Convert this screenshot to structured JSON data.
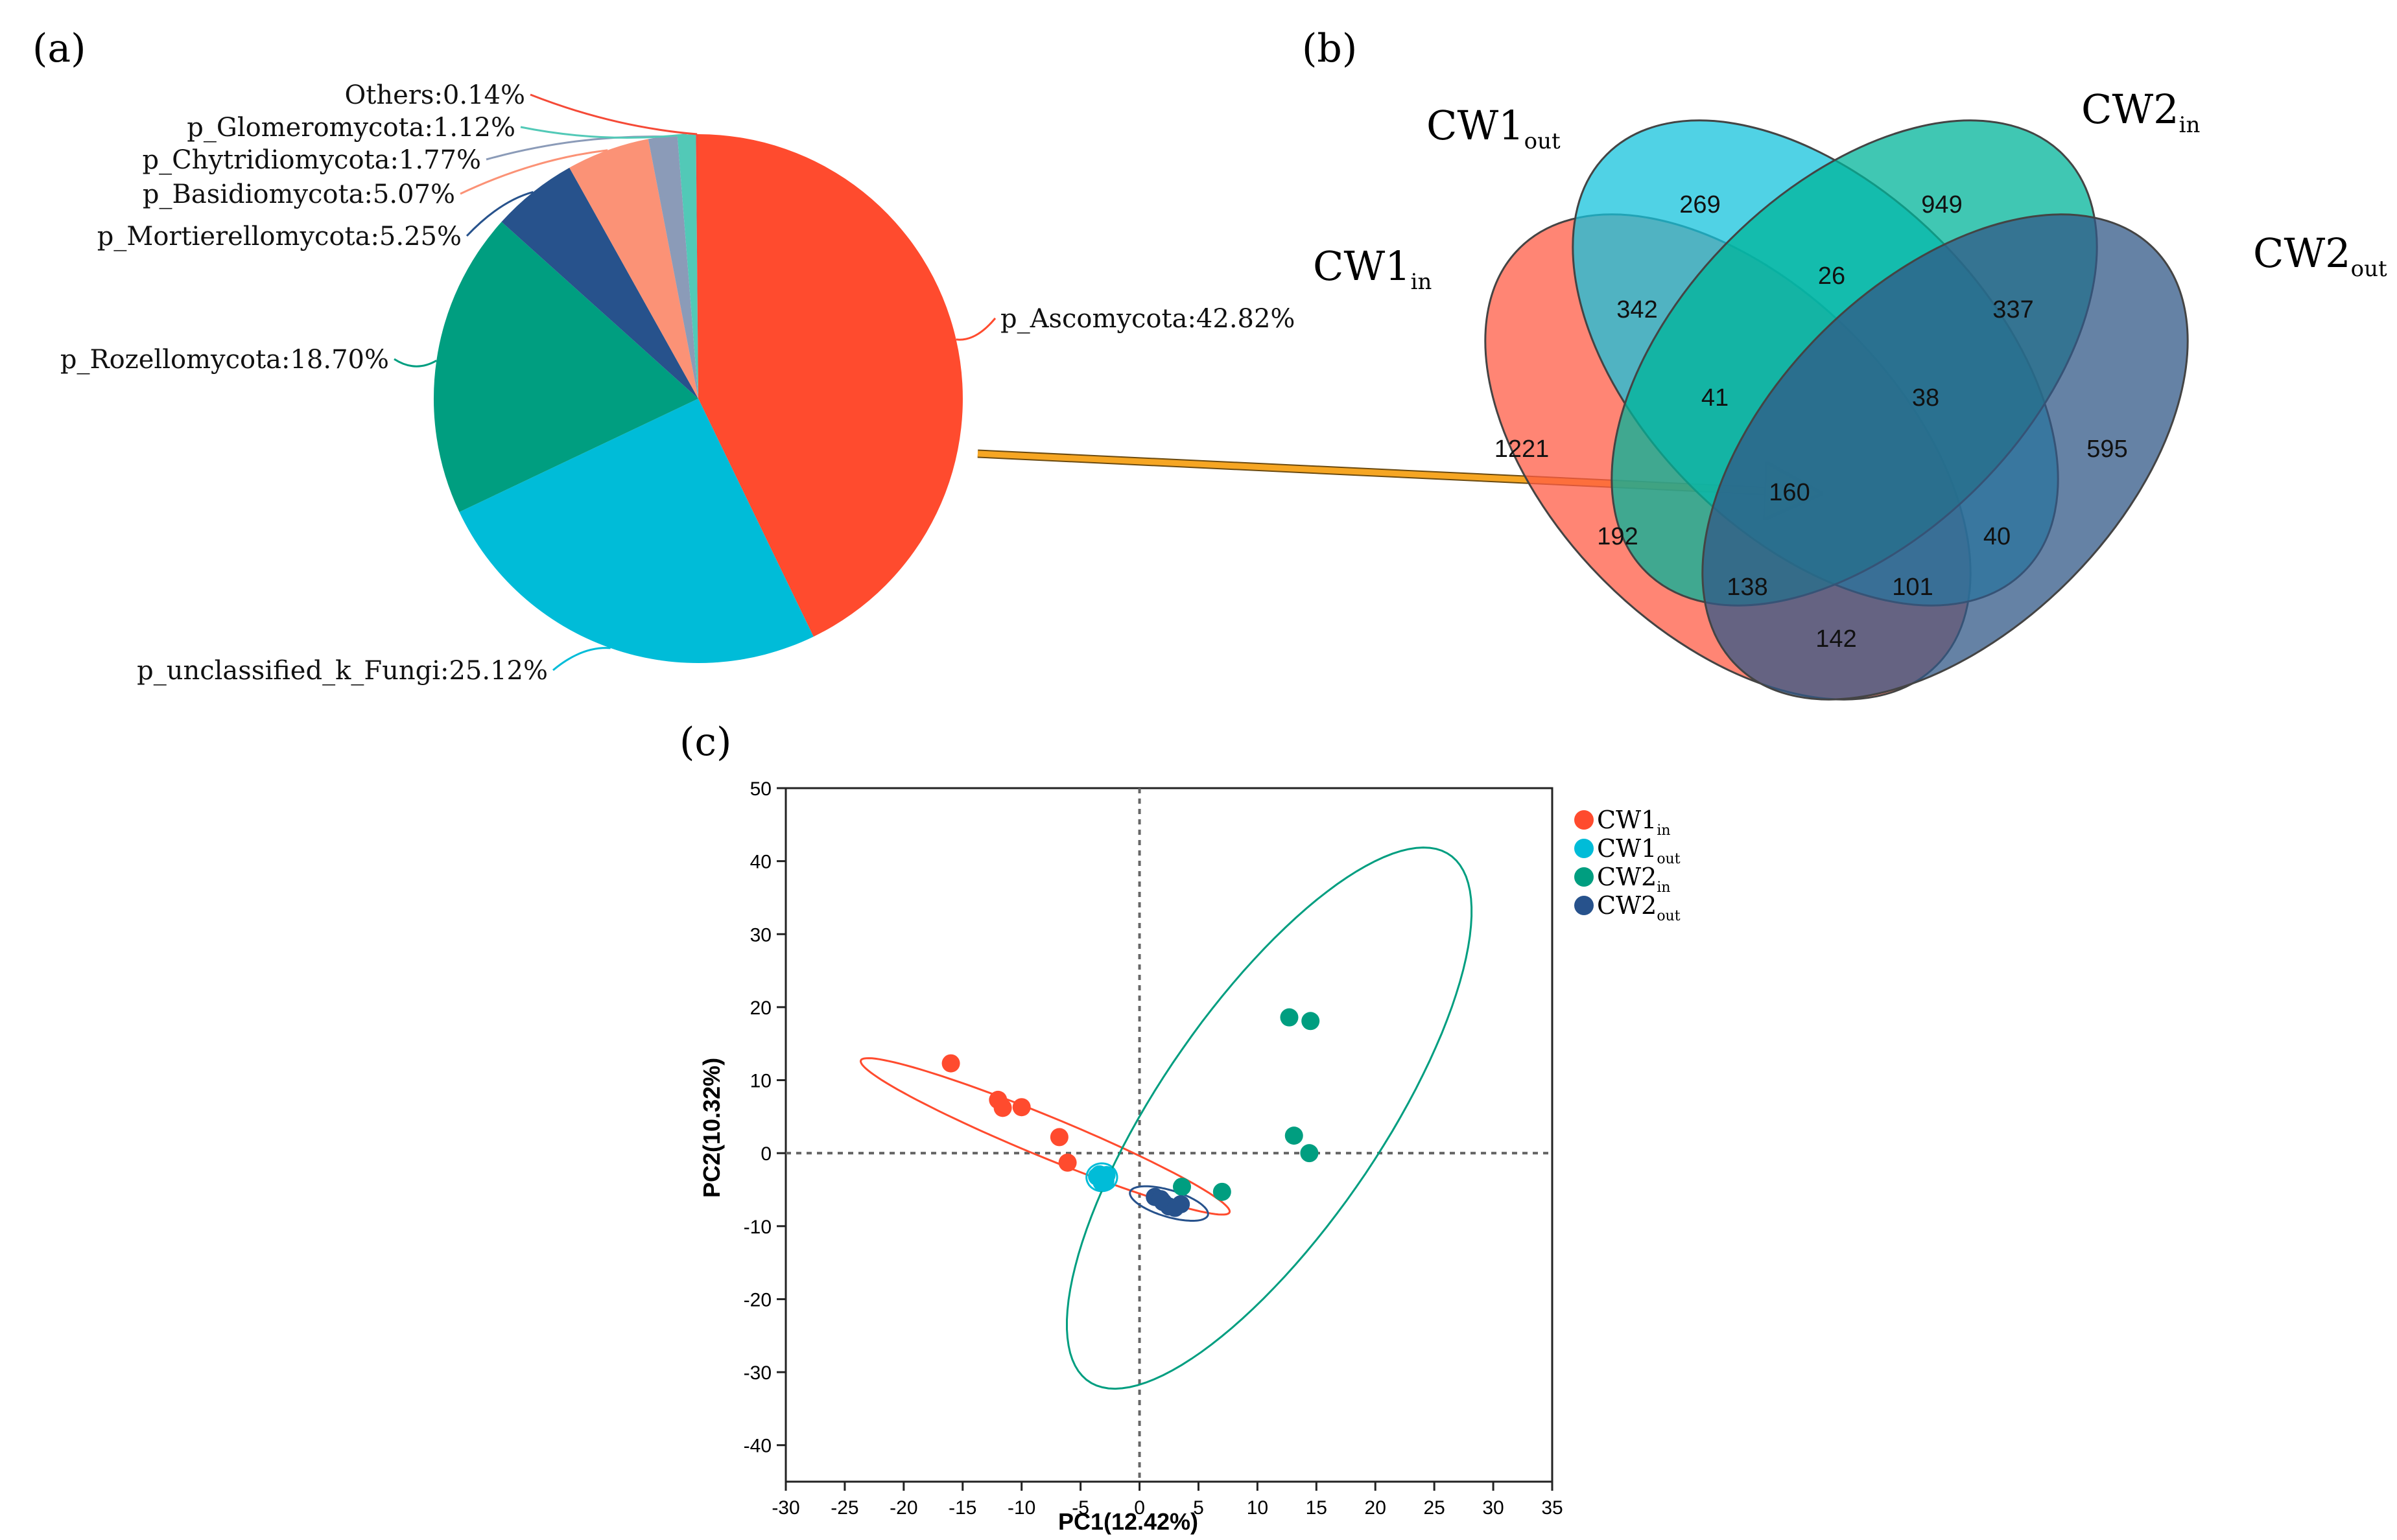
{
  "panels": {
    "a": "(a)",
    "b": "(b)",
    "c": "(c)"
  },
  "chart_data": [
    {
      "type": "pie",
      "panel": "a",
      "labels": [
        "p_Ascomycota:42.82%",
        "p_unclassified_k_Fungi:25.12%",
        "p_Rozellomycota:18.70%",
        "p_Mortierellomycota:5.25%",
        "p_Basidiomycota:5.07%",
        "p_Chytridiomycota:1.77%",
        "p_Glomeromycota:1.12%",
        "Others:0.14%"
      ],
      "values": [
        42.82,
        25.12,
        18.7,
        5.25,
        5.07,
        1.77,
        1.12,
        0.14
      ],
      "colors": [
        "#ff4b2e",
        "#00bcd8",
        "#009e80",
        "#27528c",
        "#fb9276",
        "#8b9bb8",
        "#52c9b7",
        "#f54a37"
      ]
    },
    {
      "type": "venn",
      "panel": "b",
      "sets": [
        {
          "base": "CW1",
          "sub": "in",
          "color": "#ff5c45"
        },
        {
          "base": "CW1",
          "sub": "out",
          "color": "#16c3dc"
        },
        {
          "base": "CW2",
          "sub": "in",
          "color": "#00b49a"
        },
        {
          "base": "CW2",
          "sub": "out",
          "color": "#325887"
        }
      ],
      "region_counts": {
        "CW1in_only": 1221,
        "CW1out_only": 269,
        "CW2in_only": 949,
        "CW2out_only": 595,
        "CW1in_CW1out": 342,
        "CW1out_CW2in": 26,
        "CW2in_CW2out": 337,
        "CW1in_CW2out": 142,
        "CW1in_CW1out_CW2in": 41,
        "CW1out_CW2in_CW2out": 38,
        "CW1in_CW2in": 192,
        "CW1out_CW2out": 40,
        "CW1in_CW2in_CW2out": 138,
        "CW1in_CW1out_CW2out": 101,
        "all_four": 160
      }
    },
    {
      "type": "scatter",
      "panel": "c",
      "xlabel": "PC1(12.42%)",
      "ylabel": "PC2(10.32%)",
      "xlim": [
        -30,
        35
      ],
      "ylim": [
        -45,
        50
      ],
      "xticks": [
        -30,
        -25,
        -20,
        -15,
        -10,
        -5,
        0,
        5,
        10,
        15,
        20,
        25,
        30,
        35
      ],
      "yticks": [
        -40,
        -30,
        -20,
        -10,
        0,
        10,
        20,
        30,
        40,
        50
      ],
      "series": [
        {
          "base": "CW1",
          "sub": "in",
          "color": "#ff4b2e",
          "points": [
            [
              -16,
              12.3
            ],
            [
              -12,
              7.3
            ],
            [
              -11.6,
              6.2
            ],
            [
              -10,
              6.3
            ],
            [
              -6.8,
              2.2
            ],
            [
              -6.1,
              -1.3
            ]
          ],
          "ellipse": {
            "center": [
              -8.0,
              2.3
            ],
            "rx": 18.8,
            "ry": 2.5,
            "angle_deg": -34
          }
        },
        {
          "base": "CW1",
          "sub": "out",
          "color": "#00bcd8",
          "points": [
            [
              -3.4,
              -2.9
            ],
            [
              -3.1,
              -3.4
            ],
            [
              -2.9,
              -3.8
            ],
            [
              -3.6,
              -3.2
            ],
            [
              -2.8,
              -3.0
            ],
            [
              -3.2,
              -4.0
            ]
          ],
          "ellipse": {
            "center": [
              -3.2,
              -3.3
            ],
            "rx": 1.3,
            "ry": 1.9,
            "angle_deg": 0
          }
        },
        {
          "base": "CW2",
          "sub": "in",
          "color": "#009e80",
          "points": [
            [
              12.7,
              18.6
            ],
            [
              14.5,
              18.1
            ],
            [
              13.1,
              2.4
            ],
            [
              14.4,
              0.0
            ],
            [
              7.0,
              -5.3
            ],
            [
              3.6,
              -4.6
            ]
          ],
          "ellipse": {
            "center": [
              11.0,
              4.8
            ],
            "rx": 39.5,
            "ry": 10.4,
            "angle_deg": 69
          }
        },
        {
          "base": "CW2",
          "sub": "out",
          "color": "#27528c",
          "points": [
            [
              1.3,
              -6.0
            ],
            [
              2.0,
              -6.7
            ],
            [
              2.5,
              -7.3
            ],
            [
              3.0,
              -7.5
            ],
            [
              1.8,
              -6.3
            ],
            [
              3.5,
              -7.0
            ]
          ],
          "ellipse": {
            "center": [
              2.5,
              -6.9
            ],
            "rx": 3.7,
            "ry": 1.7,
            "angle_deg": -30
          }
        }
      ]
    }
  ]
}
